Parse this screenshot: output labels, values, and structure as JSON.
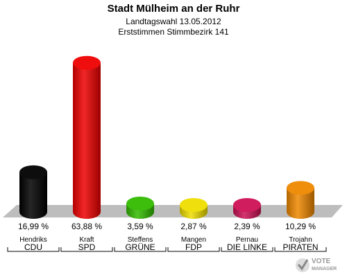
{
  "header": {
    "title": "Stadt Mülheim an der Ruhr",
    "subtitle1": "Landtagswahl 13.05.2012",
    "subtitle2": "Erststimmen Stimmbezirk 141"
  },
  "watermark": {
    "line1": "VOTE",
    "line2": "MANAGER"
  },
  "chart_data": {
    "type": "bar",
    "title": "Stadt Mülheim an der Ruhr",
    "subtitle": "Landtagswahl 13.05.2012 / Erststimmen Stimmbezirk 141",
    "categories": [
      "Hendriks",
      "Kraft",
      "Steffens",
      "Mangen",
      "Pernau",
      "Trojahn"
    ],
    "parties": [
      "CDU",
      "SPD",
      "GRÜNE",
      "FDP",
      "DIE LINKE",
      "PIRATEN"
    ],
    "values": [
      16.99,
      63.88,
      3.59,
      2.87,
      2.39,
      10.29
    ],
    "labels": [
      "16,99 %",
      "63,88 %",
      "3,59 %",
      "2,87 %",
      "2,39 %",
      "10,29 %"
    ],
    "colors": [
      "#000000",
      "#ee0000",
      "#33bb00",
      "#eedd00",
      "#cc1155",
      "#ee8800"
    ],
    "ylim": [
      0,
      70
    ],
    "grid": false
  }
}
